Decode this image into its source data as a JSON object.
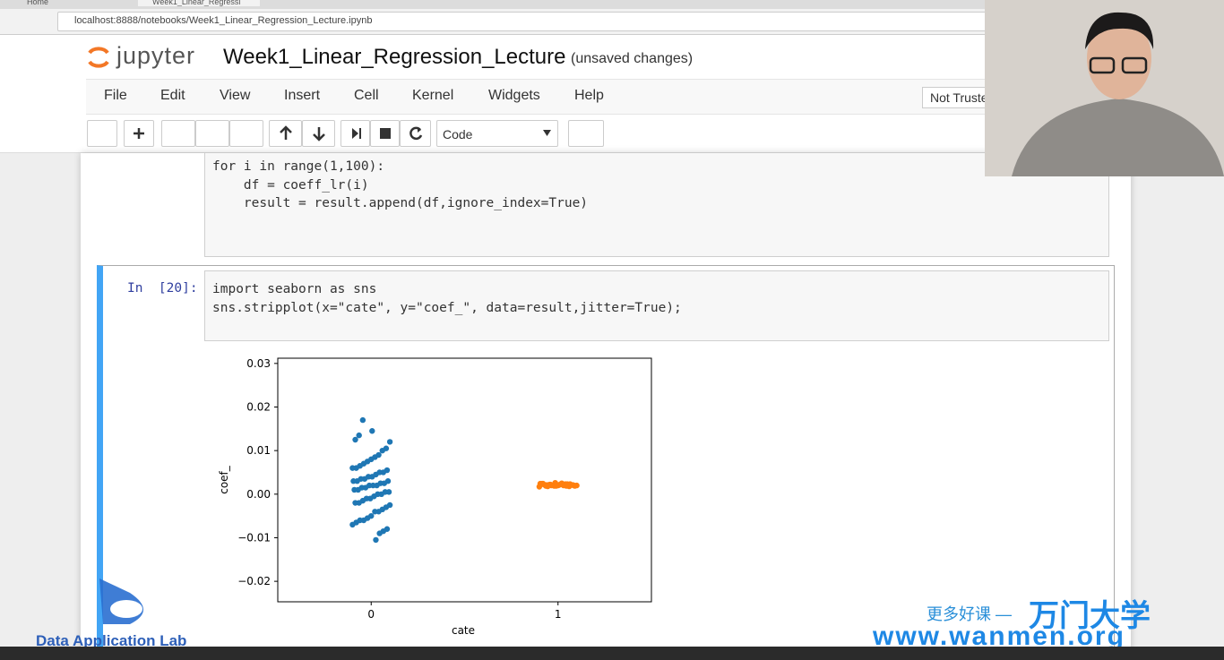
{
  "browser": {
    "tabs": [
      "Home",
      "Week1_Linear_Regressi"
    ],
    "url": "localhost:8888/notebooks/Week1_Linear_Regression_Lecture.ipynb"
  },
  "header": {
    "logo": "jupyter",
    "title": "Week1_Linear_Regression_Lecture",
    "status": "(unsaved changes)"
  },
  "menu": {
    "items": [
      "File",
      "Edit",
      "View",
      "Insert",
      "Cell",
      "Kernel",
      "Widgets",
      "Help"
    ],
    "trust": "Not Truste"
  },
  "toolbar": {
    "cell_type": "Code"
  },
  "cells": [
    {
      "lines": [
        "for i in range(1,100):",
        "    df = coeff_lr(i)",
        "    result = result.append(df,ignore_index=True)"
      ]
    },
    {
      "prompt": "In  [20]:",
      "lines": [
        "import seaborn as sns",
        "sns.stripplot(x=\"cate\", y=\"coef_\", data=result,jitter=True);"
      ]
    }
  ],
  "chart_data": {
    "type": "strip",
    "xlabel": "cate",
    "ylabel": "coef_",
    "categories": [
      "0",
      "1"
    ],
    "ylim": [
      -0.0247,
      0.0312
    ],
    "yticks": [
      {
        "value": -0.02,
        "label": "−0.02"
      },
      {
        "value": -0.01,
        "label": "−0.01"
      },
      {
        "value": 0,
        "label": "0.00"
      },
      0.01,
      0.02,
      0.03
    ],
    "series": [
      {
        "name": "0",
        "color": "#1f77b4",
        "values": [
          0.017,
          0.0135,
          0.0125,
          0.012,
          0.0105,
          0.01,
          0.009,
          0.0085,
          0.008,
          0.0075,
          0.007,
          0.0065,
          0.006,
          0.006,
          0.0055,
          0.005,
          0.005,
          0.0045,
          0.004,
          0.004,
          0.0035,
          0.0035,
          0.003,
          0.003,
          0.003,
          0.0025,
          0.0025,
          0.002,
          0.002,
          0.002,
          0.0015,
          0.0015,
          0.001,
          0.001,
          0.0005,
          0.0005,
          0,
          0,
          -0.0005,
          -0.001,
          -0.001,
          -0.0015,
          -0.002,
          -0.002,
          -0.0025,
          -0.003,
          -0.0035,
          -0.004,
          -0.004,
          -0.005,
          -0.0055,
          -0.006,
          -0.006,
          -0.0065,
          -0.007,
          -0.008,
          -0.0085,
          -0.009,
          -0.0105,
          0.0145
        ]
      },
      {
        "name": "1",
        "color": "#ff7f0e",
        "values": [
          0.0022,
          0.0019,
          0.0024,
          0.002,
          0.0021,
          0.0018,
          0.0023,
          0.0025,
          0.002,
          0.0019,
          0.0022,
          0.0021,
          0.0024,
          0.0017,
          0.002,
          0.0023,
          0.0019,
          0.0022,
          0.0021,
          0.0026,
          0.002,
          0.0018,
          0.0022,
          0.0024,
          0.0019,
          0.0021,
          0.0023,
          0.002,
          0.0022,
          0.0019
        ]
      }
    ]
  },
  "watermarks": {
    "lab": "Data Application Lab",
    "slogan": "更多好课 —",
    "brand": "万门大学",
    "site": "www.wanmen.org"
  }
}
